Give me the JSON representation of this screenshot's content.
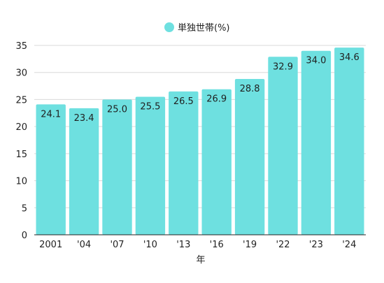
{
  "chart_data": {
    "type": "bar",
    "categories": [
      "2001",
      "'04",
      "'07",
      "'10",
      "'13",
      "'16",
      "'19",
      "'22",
      "'23",
      "'24"
    ],
    "series": [
      {
        "name": "単独世帯(%)",
        "values": [
          24.1,
          23.4,
          25.0,
          25.5,
          26.5,
          26.9,
          28.8,
          32.9,
          34.0,
          34.6
        ]
      }
    ],
    "data_labels": [
      "24.1",
      "23.4",
      "25.0",
      "25.5",
      "26.5",
      "26.9",
      "28.8",
      "32.9",
      "34.0",
      "34.6"
    ],
    "xlabel": "年",
    "ylabel": "",
    "ylim": [
      0,
      35
    ],
    "yticks": [
      0,
      5,
      10,
      15,
      20,
      25,
      30,
      35
    ],
    "grid": true,
    "legend": "top-center",
    "colors": {
      "bar": "#6ee0e0",
      "grid": "#d9d9d9",
      "axis": "#222222"
    }
  }
}
